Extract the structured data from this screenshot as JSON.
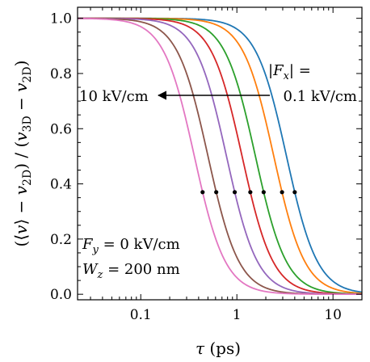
{
  "chart_data": {
    "type": "line",
    "xscale": "log",
    "xlim": [
      0.022,
      20
    ],
    "ylim": [
      -0.02,
      1.04
    ],
    "xlabel": {
      "symbol": "τ",
      "unit": " (ps)"
    },
    "ylabel": {
      "part1": "(⟨",
      "v1": "v",
      "part2": "⟩ − ",
      "v2": "v",
      "sub2": "2D",
      "part3": ") / (",
      "v3": "v",
      "sub3": "3D",
      "part4": " − ",
      "v4": "v",
      "sub4": "2D",
      "part5": ")"
    },
    "x_ticks": [
      {
        "value": 0.1,
        "label": "0.1"
      },
      {
        "value": 1,
        "label": "1"
      },
      {
        "value": 10,
        "label": "10"
      }
    ],
    "y_ticks": [
      {
        "value": 0.0,
        "label": "0.0"
      },
      {
        "value": 0.2,
        "label": "0.2"
      },
      {
        "value": 0.4,
        "label": "0.4"
      },
      {
        "value": 0.6,
        "label": "0.6"
      },
      {
        "value": 0.8,
        "label": "0.8"
      },
      {
        "value": 1.0,
        "label": "1.0"
      }
    ],
    "curve_shape": {
      "n": 2.7,
      "y_at_marker": 0.37
    },
    "series": [
      {
        "tau_marker": 4.0,
        "color": "#1f77b4"
      },
      {
        "tau_marker": 2.95,
        "color": "#ff7f0e"
      },
      {
        "tau_marker": 1.9,
        "color": "#2ca02c"
      },
      {
        "tau_marker": 1.38,
        "color": "#d62728"
      },
      {
        "tau_marker": 0.95,
        "color": "#9467bd"
      },
      {
        "tau_marker": 0.61,
        "color": "#8c564b"
      },
      {
        "tau_marker": 0.44,
        "color": "#e377c2"
      }
    ],
    "annotations": {
      "field_label": {
        "pre": "|",
        "sym": "F",
        "sub": "x",
        "post": "| ="
      },
      "arrow_start_label": "0.1 kV/cm",
      "arrow_end_label": "10 kV/cm",
      "params": [
        {
          "sym": "F",
          "sub": "y",
          "rest": " = 0 kV/cm"
        },
        {
          "sym": "W",
          "sub": "z",
          "rest": " = 200 nm"
        }
      ]
    }
  }
}
